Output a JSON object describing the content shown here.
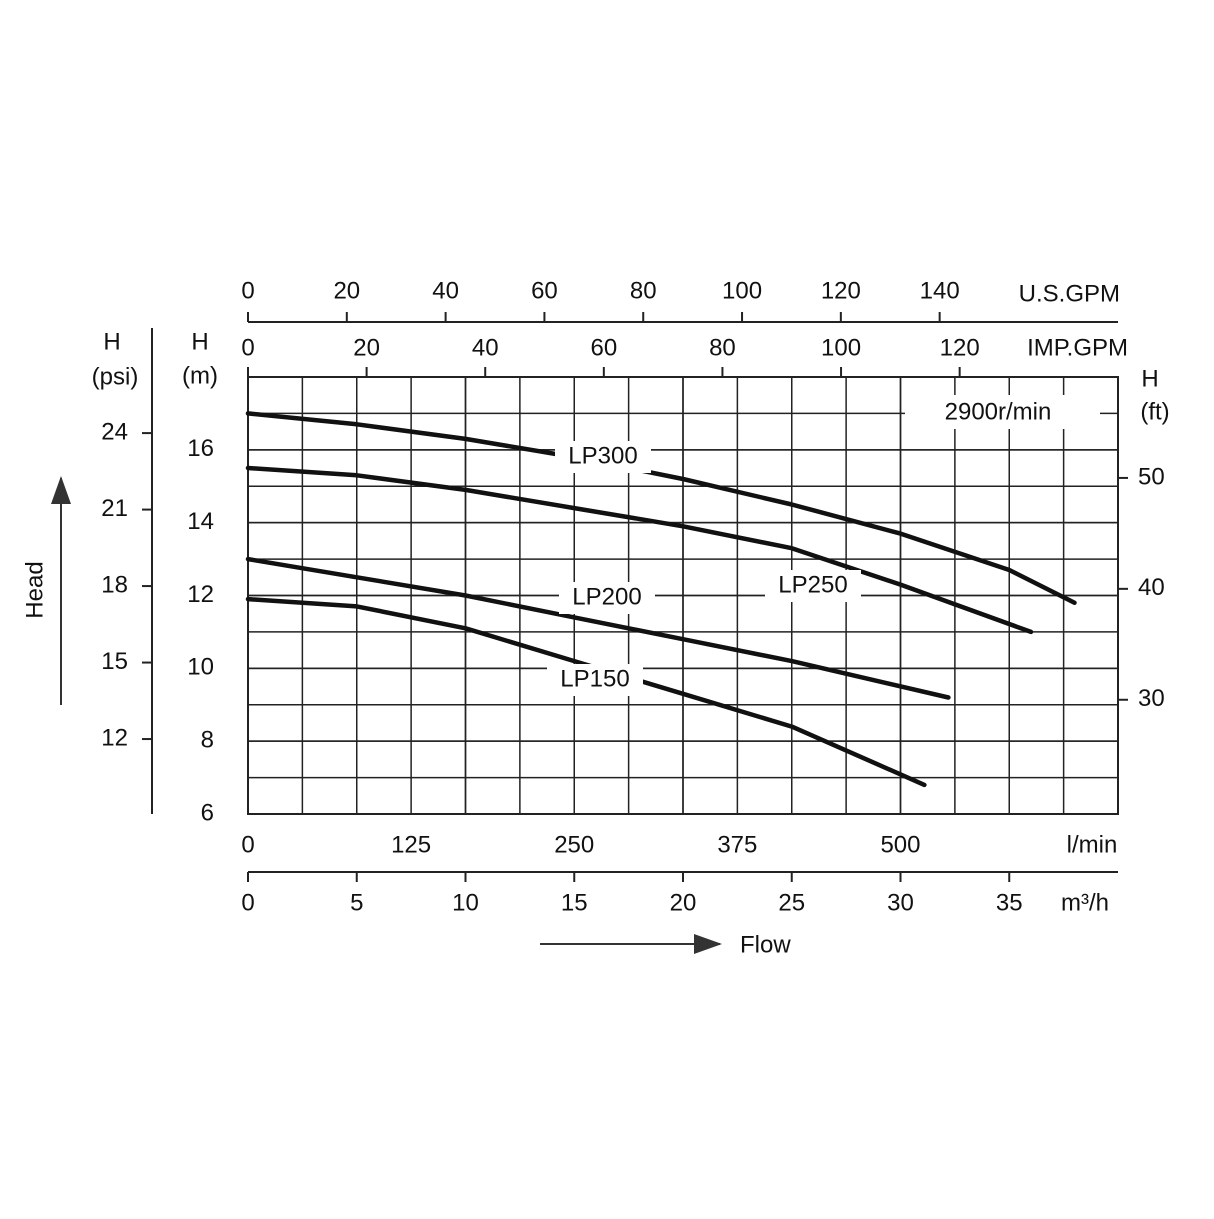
{
  "chart_data": {
    "type": "line",
    "annotation": "2900r/min",
    "x_title": "Flow",
    "y_title": "Head",
    "xlim": [
      0,
      40
    ],
    "xticks": [
      0,
      5,
      10,
      15,
      20,
      25,
      30,
      35
    ],
    "x_unit": "m³/h",
    "x_lmin": {
      "unit": "l/min",
      "lim": [
        0,
        666.7
      ],
      "ticks": [
        0,
        125,
        250,
        375,
        500
      ]
    },
    "x_usgpm": {
      "unit": "U.S.GPM",
      "lim": [
        0,
        176.1
      ],
      "ticks": [
        0,
        20,
        40,
        60,
        80,
        100,
        120,
        140
      ]
    },
    "x_impgpm": {
      "unit": "IMP.GPM",
      "lim": [
        0,
        146.7
      ],
      "ticks": [
        0,
        20,
        40,
        60,
        80,
        100,
        120
      ]
    },
    "ylabel": "H",
    "y_unit": "(m)",
    "ylim": [
      6,
      18
    ],
    "yticks": [
      6,
      8,
      10,
      12,
      14,
      16
    ],
    "y_psi": {
      "label": "H",
      "unit": "(psi)",
      "lim": [
        9.06,
        26.2
      ],
      "ticks": [
        12,
        15,
        18,
        21,
        24
      ]
    },
    "y2label": "H",
    "y2_unit": "(ft)",
    "y2lim": [
      19.7,
      59.1
    ],
    "y2ticks": [
      30,
      40,
      50
    ],
    "grid": true,
    "series": [
      {
        "name": "LP300",
        "color": "#111111",
        "x": [
          0,
          5,
          10,
          15,
          20,
          25,
          30,
          35,
          38
        ],
        "values": [
          17,
          16.7,
          16.3,
          15.8,
          15.2,
          14.5,
          13.7,
          12.7,
          11.8
        ]
      },
      {
        "name": "LP250",
        "color": "#111111",
        "x": [
          0,
          5,
          10,
          15,
          20,
          25,
          30,
          36
        ],
        "values": [
          15.5,
          15.3,
          14.9,
          14.4,
          13.9,
          13.3,
          12.3,
          11.0
        ]
      },
      {
        "name": "LP200",
        "color": "#111111",
        "x": [
          0,
          5,
          10,
          15,
          20,
          25,
          32.2
        ],
        "values": [
          13,
          12.5,
          12,
          11.4,
          10.8,
          10.2,
          9.2
        ]
      },
      {
        "name": "LP150",
        "color": "#111111",
        "x": [
          0,
          5,
          10,
          15,
          20,
          25,
          31.1
        ],
        "values": [
          11.9,
          11.7,
          11.1,
          10.2,
          9.3,
          8.4,
          6.8
        ]
      }
    ]
  }
}
